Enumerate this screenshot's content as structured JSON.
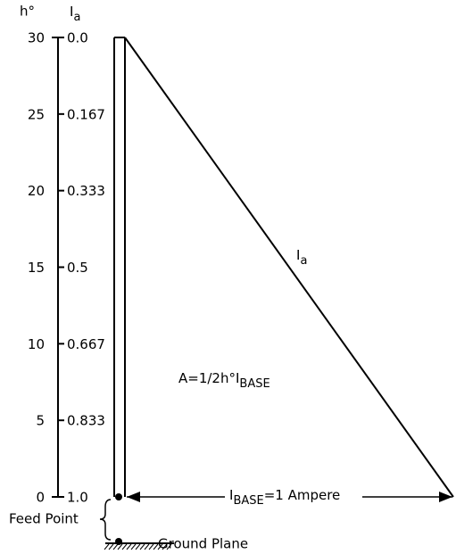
{
  "header": {
    "h": "h°",
    "i": {
      "main": "I",
      "sub": "a"
    }
  },
  "scale": {
    "h_labels": [
      30,
      25,
      20,
      15,
      10,
      5,
      0
    ],
    "i_labels": [
      "0.0",
      "0.167",
      "0.333",
      "0.5",
      "0.667",
      "0.833",
      "1.0"
    ]
  },
  "curve_label": {
    "main": "I",
    "sub": "a"
  },
  "area_label": {
    "main": "A=1/2h°I",
    "sub": "BASE"
  },
  "base_label": {
    "main": "I",
    "sub": "BASE",
    "rest": "=1 Ampere"
  },
  "feed_point": "Feed Point",
  "ground_plane": "Ground Plane"
}
